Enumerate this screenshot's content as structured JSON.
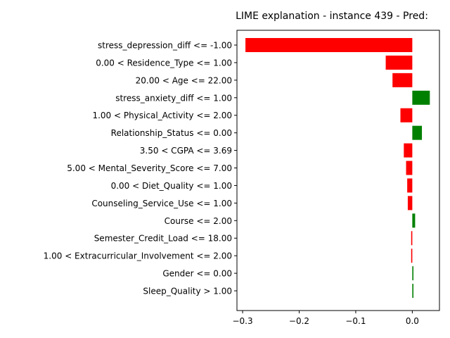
{
  "chart_data": {
    "type": "bar",
    "orientation": "horizontal",
    "title": "LIME explanation - instance 439 - Pred:",
    "xlabel": "",
    "ylabel": "",
    "xlim": [
      -0.31,
      0.048
    ],
    "xticks": [
      -0.3,
      -0.2,
      -0.1,
      0.0
    ],
    "xtick_labels": [
      "−0.3",
      "−0.2",
      "−0.1",
      "0.0"
    ],
    "grid": false,
    "colors": {
      "positive": "#008000",
      "negative": "#ff0000"
    },
    "categories": [
      "stress_depression_diff <= -1.00",
      "0.00 < Residence_Type <= 1.00",
      "20.00 < Age <= 22.00",
      "stress_anxiety_diff <= 1.00",
      "1.00 < Physical_Activity <= 2.00",
      "Relationship_Status <= 0.00",
      "3.50 < CGPA <= 3.69",
      "5.00 < Mental_Severity_Score <= 7.00",
      "0.00 < Diet_Quality <= 1.00",
      "Counseling_Service_Use <= 1.00",
      "Course <= 2.00",
      "Semester_Credit_Load <= 18.00",
      "1.00 < Extracurricular_Involvement <= 2.00",
      "Gender <= 0.00",
      "Sleep_Quality > 1.00"
    ],
    "values": [
      -0.295,
      -0.047,
      -0.035,
      0.031,
      -0.021,
      0.017,
      -0.015,
      -0.011,
      -0.009,
      -0.008,
      0.005,
      -0.002,
      -0.002,
      0.002,
      0.002
    ]
  }
}
